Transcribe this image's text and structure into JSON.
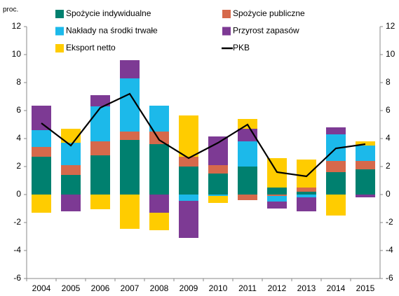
{
  "chart_data": {
    "type": "bar",
    "stacked": true,
    "y_label": "proc.",
    "categories": [
      "2004",
      "2005",
      "2006",
      "2007",
      "2008",
      "2009",
      "2010",
      "2011",
      "2012",
      "2013",
      "2014",
      "2015"
    ],
    "series": [
      {
        "name": "Spożycie indywidualne",
        "color": "#00806f",
        "values": [
          2.7,
          1.4,
          2.8,
          3.9,
          3.6,
          2.0,
          1.5,
          2.0,
          0.5,
          0.2,
          1.6,
          1.8
        ]
      },
      {
        "name": "Spożycie publiczne",
        "color": "#d6694b",
        "values": [
          0.7,
          0.7,
          1.0,
          0.6,
          0.9,
          0.7,
          0.6,
          -0.4,
          -0.1,
          0.3,
          0.8,
          0.6
        ]
      },
      {
        "name": "Nakłady na środki trwałe",
        "color": "#1cb9ea",
        "values": [
          1.2,
          1.6,
          2.5,
          3.8,
          1.85,
          -0.45,
          -0.1,
          1.8,
          -0.4,
          -0.2,
          1.9,
          1.1
        ]
      },
      {
        "name": "Przyrost zapasów",
        "color": "#7d3a94",
        "values": [
          1.75,
          -1.2,
          0.8,
          1.3,
          -1.3,
          -2.65,
          2.05,
          0.9,
          -0.5,
          -1.0,
          0.5,
          -0.2
        ]
      },
      {
        "name": "Eksport netto",
        "color": "#ffcc00",
        "values": [
          -1.3,
          1.0,
          -1.05,
          -2.45,
          -1.25,
          2.95,
          -0.5,
          0.7,
          2.1,
          2.0,
          -1.5,
          0.3
        ]
      },
      {
        "name": "PKB",
        "type": "line",
        "color": "#000000",
        "values": [
          5.1,
          3.5,
          6.2,
          7.2,
          3.9,
          2.6,
          3.7,
          5.0,
          1.6,
          1.3,
          3.3,
          3.6
        ]
      }
    ],
    "ylim": [
      -6,
      12
    ],
    "yticks": [
      -6,
      -4,
      -2,
      0,
      2,
      4,
      6,
      8,
      10,
      12
    ],
    "y2lim": [
      -6,
      12
    ],
    "y2ticks": [
      -6,
      -4,
      -2,
      0,
      2,
      4,
      6,
      8,
      10,
      12
    ],
    "grid": false,
    "legend": "top"
  }
}
